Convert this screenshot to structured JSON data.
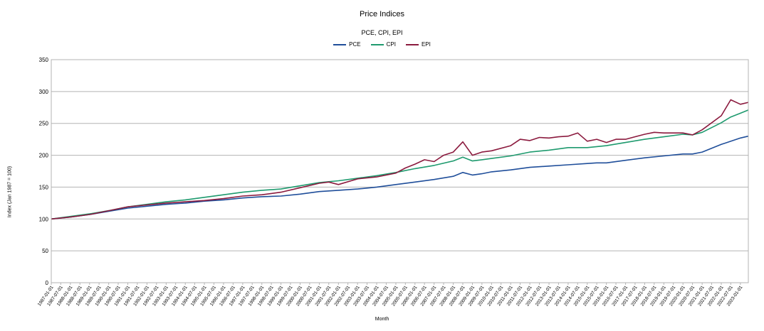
{
  "chart_data": {
    "type": "line",
    "title": "Price Indices",
    "subtitle": "PCE, CPI, EPI",
    "xlabel": "Month",
    "ylabel": "Index (Jan 1987 = 100)",
    "ylim": [
      0,
      350
    ],
    "yticks": [
      0,
      50,
      100,
      150,
      200,
      250,
      300,
      350
    ],
    "grid": true,
    "legend": "top-center",
    "x_tick_labels": [
      "1987-01-01",
      "1987-07-01",
      "1988-01-01",
      "1988-07-01",
      "1989-01-01",
      "1989-07-01",
      "1990-01-01",
      "1990-07-01",
      "1991-01-01",
      "1991-07-01",
      "1992-01-01",
      "1992-07-01",
      "1993-01-01",
      "1993-07-01",
      "1994-01-01",
      "1994-07-01",
      "1995-01-01",
      "1995-07-01",
      "1996-01-01",
      "1996-07-01",
      "1997-01-01",
      "1997-07-01",
      "1998-01-01",
      "1998-07-01",
      "1999-01-01",
      "1999-07-01",
      "2000-01-01",
      "2000-07-01",
      "2001-01-01",
      "2001-07-01",
      "2002-01-01",
      "2002-07-01",
      "2003-01-01",
      "2003-07-01",
      "2004-01-01",
      "2004-07-01",
      "2005-01-01",
      "2005-07-01",
      "2006-01-01",
      "2006-07-01",
      "2007-01-01",
      "2007-07-01",
      "2008-01-01",
      "2008-07-01",
      "2009-01-01",
      "2009-07-01",
      "2010-01-01",
      "2010-07-01",
      "2011-01-01",
      "2011-07-01",
      "2012-01-01",
      "2012-07-01",
      "2013-01-01",
      "2013-07-01",
      "2014-01-01",
      "2014-07-01",
      "2015-01-01",
      "2015-07-01",
      "2016-01-01",
      "2016-07-01",
      "2017-01-01",
      "2017-07-01",
      "2018-01-01",
      "2018-07-01",
      "2019-01-01",
      "2019-07-01",
      "2020-01-01",
      "2020-07-01",
      "2021-01-01",
      "2021-07-01",
      "2022-01-01",
      "2022-07-01",
      "2023-01-01"
    ],
    "x_range": [
      "1987-01-01",
      "2023-06-01"
    ],
    "series": [
      {
        "name": "PCE",
        "color": "#1f4e9a",
        "points": [
          [
            "1987-01-01",
            100
          ],
          [
            "1988-01-01",
            103
          ],
          [
            "1989-01-01",
            107
          ],
          [
            "1990-01-01",
            112
          ],
          [
            "1991-01-01",
            117
          ],
          [
            "1992-01-01",
            120
          ],
          [
            "1993-01-01",
            123
          ],
          [
            "1994-01-01",
            125
          ],
          [
            "1995-01-01",
            128
          ],
          [
            "1996-01-01",
            130
          ],
          [
            "1997-01-01",
            133
          ],
          [
            "1998-01-01",
            135
          ],
          [
            "1999-01-01",
            136
          ],
          [
            "2000-01-01",
            139
          ],
          [
            "2001-01-01",
            143
          ],
          [
            "2002-01-01",
            145
          ],
          [
            "2003-01-01",
            147
          ],
          [
            "2004-01-01",
            150
          ],
          [
            "2005-01-01",
            154
          ],
          [
            "2006-01-01",
            158
          ],
          [
            "2007-01-01",
            162
          ],
          [
            "2008-01-01",
            167
          ],
          [
            "2008-07-01",
            173
          ],
          [
            "2009-01-01",
            169
          ],
          [
            "2009-07-01",
            171
          ],
          [
            "2010-01-01",
            174
          ],
          [
            "2011-01-01",
            177
          ],
          [
            "2012-01-01",
            181
          ],
          [
            "2013-01-01",
            183
          ],
          [
            "2014-01-01",
            185
          ],
          [
            "2015-01-01",
            187
          ],
          [
            "2015-07-01",
            188
          ],
          [
            "2016-01-01",
            188
          ],
          [
            "2017-01-01",
            192
          ],
          [
            "2018-01-01",
            196
          ],
          [
            "2019-01-01",
            199
          ],
          [
            "2020-01-01",
            202
          ],
          [
            "2020-07-01",
            202
          ],
          [
            "2021-01-01",
            205
          ],
          [
            "2022-01-01",
            217
          ],
          [
            "2023-01-01",
            227
          ],
          [
            "2023-06-01",
            230
          ]
        ]
      },
      {
        "name": "CPI",
        "color": "#1e9a6e",
        "points": [
          [
            "1987-01-01",
            100
          ],
          [
            "1988-01-01",
            104
          ],
          [
            "1989-01-01",
            108
          ],
          [
            "1990-01-01",
            113
          ],
          [
            "1991-01-01",
            119
          ],
          [
            "1992-01-01",
            123
          ],
          [
            "1993-01-01",
            127
          ],
          [
            "1994-01-01",
            130
          ],
          [
            "1995-01-01",
            134
          ],
          [
            "1996-01-01",
            138
          ],
          [
            "1997-01-01",
            142
          ],
          [
            "1998-01-01",
            145
          ],
          [
            "1999-01-01",
            147
          ],
          [
            "2000-01-01",
            152
          ],
          [
            "2001-01-01",
            157
          ],
          [
            "2002-01-01",
            160
          ],
          [
            "2003-01-01",
            164
          ],
          [
            "2004-01-01",
            168
          ],
          [
            "2005-01-01",
            173
          ],
          [
            "2006-01-01",
            179
          ],
          [
            "2007-01-01",
            184
          ],
          [
            "2008-01-01",
            191
          ],
          [
            "2008-07-01",
            197
          ],
          [
            "2009-01-01",
            191
          ],
          [
            "2009-07-01",
            193
          ],
          [
            "2010-01-01",
            195
          ],
          [
            "2011-01-01",
            199
          ],
          [
            "2012-01-01",
            205
          ],
          [
            "2013-01-01",
            208
          ],
          [
            "2014-01-01",
            212
          ],
          [
            "2015-01-01",
            212
          ],
          [
            "2016-01-01",
            215
          ],
          [
            "2017-01-01",
            220
          ],
          [
            "2018-01-01",
            225
          ],
          [
            "2019-01-01",
            229
          ],
          [
            "2020-01-01",
            233
          ],
          [
            "2020-07-01",
            232
          ],
          [
            "2021-01-01",
            236
          ],
          [
            "2022-01-01",
            251
          ],
          [
            "2022-07-01",
            260
          ],
          [
            "2023-01-01",
            266
          ],
          [
            "2023-06-01",
            271
          ]
        ]
      },
      {
        "name": "EPI",
        "color": "#8b1a3e",
        "points": [
          [
            "1987-01-01",
            100
          ],
          [
            "1988-01-01",
            103
          ],
          [
            "1989-01-01",
            107
          ],
          [
            "1990-01-01",
            113
          ],
          [
            "1991-01-01",
            119
          ],
          [
            "1992-01-01",
            122
          ],
          [
            "1993-01-01",
            125
          ],
          [
            "1994-01-01",
            127
          ],
          [
            "1995-01-01",
            129
          ],
          [
            "1996-01-01",
            132
          ],
          [
            "1997-01-01",
            136
          ],
          [
            "1998-01-01",
            138
          ],
          [
            "1999-01-01",
            142
          ],
          [
            "2000-01-01",
            149
          ],
          [
            "2001-01-01",
            156
          ],
          [
            "2001-07-01",
            158
          ],
          [
            "2002-01-01",
            154
          ],
          [
            "2003-01-01",
            163
          ],
          [
            "2004-01-01",
            166
          ],
          [
            "2005-01-01",
            172
          ],
          [
            "2005-07-01",
            180
          ],
          [
            "2006-01-01",
            186
          ],
          [
            "2006-07-01",
            193
          ],
          [
            "2007-01-01",
            190
          ],
          [
            "2007-07-01",
            200
          ],
          [
            "2008-01-01",
            205
          ],
          [
            "2008-07-01",
            221
          ],
          [
            "2009-01-01",
            200
          ],
          [
            "2009-07-01",
            205
          ],
          [
            "2010-01-01",
            207
          ],
          [
            "2011-01-01",
            215
          ],
          [
            "2011-07-01",
            225
          ],
          [
            "2012-01-01",
            223
          ],
          [
            "2012-07-01",
            228
          ],
          [
            "2013-01-01",
            227
          ],
          [
            "2013-07-01",
            229
          ],
          [
            "2014-01-01",
            230
          ],
          [
            "2014-07-01",
            235
          ],
          [
            "2015-01-01",
            222
          ],
          [
            "2015-07-01",
            225
          ],
          [
            "2016-01-01",
            220
          ],
          [
            "2016-07-01",
            225
          ],
          [
            "2017-01-01",
            225
          ],
          [
            "2018-01-01",
            233
          ],
          [
            "2018-07-01",
            236
          ],
          [
            "2019-01-01",
            235
          ],
          [
            "2020-01-01",
            235
          ],
          [
            "2020-07-01",
            232
          ],
          [
            "2021-01-01",
            240
          ],
          [
            "2022-01-01",
            262
          ],
          [
            "2022-07-01",
            287
          ],
          [
            "2023-01-01",
            280
          ],
          [
            "2023-06-01",
            283
          ]
        ]
      }
    ]
  }
}
